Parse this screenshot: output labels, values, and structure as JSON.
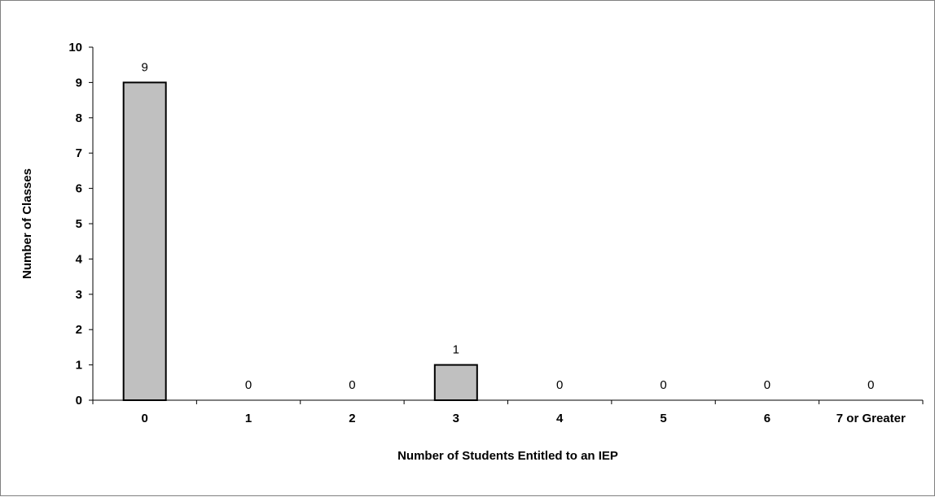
{
  "chart_data": {
    "type": "bar",
    "title": "",
    "xlabel": "Number of Students Entitled to an IEP",
    "ylabel": "Number of Classes",
    "categories": [
      "0",
      "1",
      "2",
      "3",
      "4",
      "5",
      "6",
      "7 or Greater"
    ],
    "values": [
      9,
      0,
      0,
      1,
      0,
      0,
      0,
      0
    ],
    "data_labels": [
      "9",
      "0",
      "0",
      "1",
      "0",
      "0",
      "0",
      "0"
    ],
    "ylim": [
      0,
      10
    ],
    "yticks": [
      "0",
      "1",
      "2",
      "3",
      "4",
      "5",
      "6",
      "7",
      "8",
      "9",
      "10"
    ],
    "grid": false,
    "legend": "none",
    "bar_color": "#c0c0c0",
    "bar_edge_color": "#000000"
  }
}
